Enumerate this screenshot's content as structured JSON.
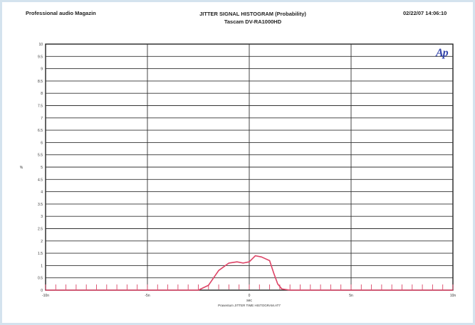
{
  "header": {
    "left": "Professional audio Magazin",
    "title_line1": "JITTER SIGNAL HISTOGRAM (Probability)",
    "title_line2": "Tascam DV-RA1000HD",
    "right": "02/22/07 14:06:10"
  },
  "logo": "Ap",
  "chart_data": {
    "type": "line",
    "title": "JITTER SIGNAL HISTOGRAM (Probability)",
    "subtitle": "Tascam DV-RA1000HD",
    "xlabel": "sec",
    "ylabel": "%",
    "footer": "Prasentum JITTER TIME HISTOGRAM.AT7",
    "xlim": [
      -10,
      10
    ],
    "ylim": [
      0,
      10
    ],
    "x_tick_labels": [
      "-10n",
      "-5n",
      "0",
      "5n",
      "10n"
    ],
    "x_tick_values": [
      -10,
      -5,
      0,
      5,
      10
    ],
    "y_tick_labels": [
      "10",
      "9.5",
      "9",
      "8.5",
      "8",
      "7.5",
      "7",
      "6.5",
      "6",
      "5.5",
      "5",
      "4.5",
      "4",
      "3.5",
      "3",
      "2.5",
      "2",
      "1.5",
      "1",
      "0.5",
      "0"
    ],
    "y_tick_values": [
      10,
      9.5,
      9,
      8.5,
      8,
      7.5,
      7,
      6.5,
      6,
      5.5,
      5,
      4.5,
      4,
      3.5,
      3,
      2.5,
      2,
      1.5,
      1,
      0.5,
      0
    ],
    "grid": true,
    "series": [
      {
        "color": "#dd4466",
        "x": [
          -10,
          -2.5,
          -2,
          -1.5,
          -1,
          -0.6,
          -0.3,
          0,
          0.3,
          0.6,
          1,
          1.2,
          1.4,
          1.6,
          2,
          2.5,
          10
        ],
        "y": [
          0,
          0,
          0.2,
          0.8,
          1.1,
          1.15,
          1.1,
          1.15,
          1.4,
          1.35,
          1.2,
          0.7,
          0.25,
          0.05,
          0,
          0,
          0
        ]
      }
    ]
  }
}
